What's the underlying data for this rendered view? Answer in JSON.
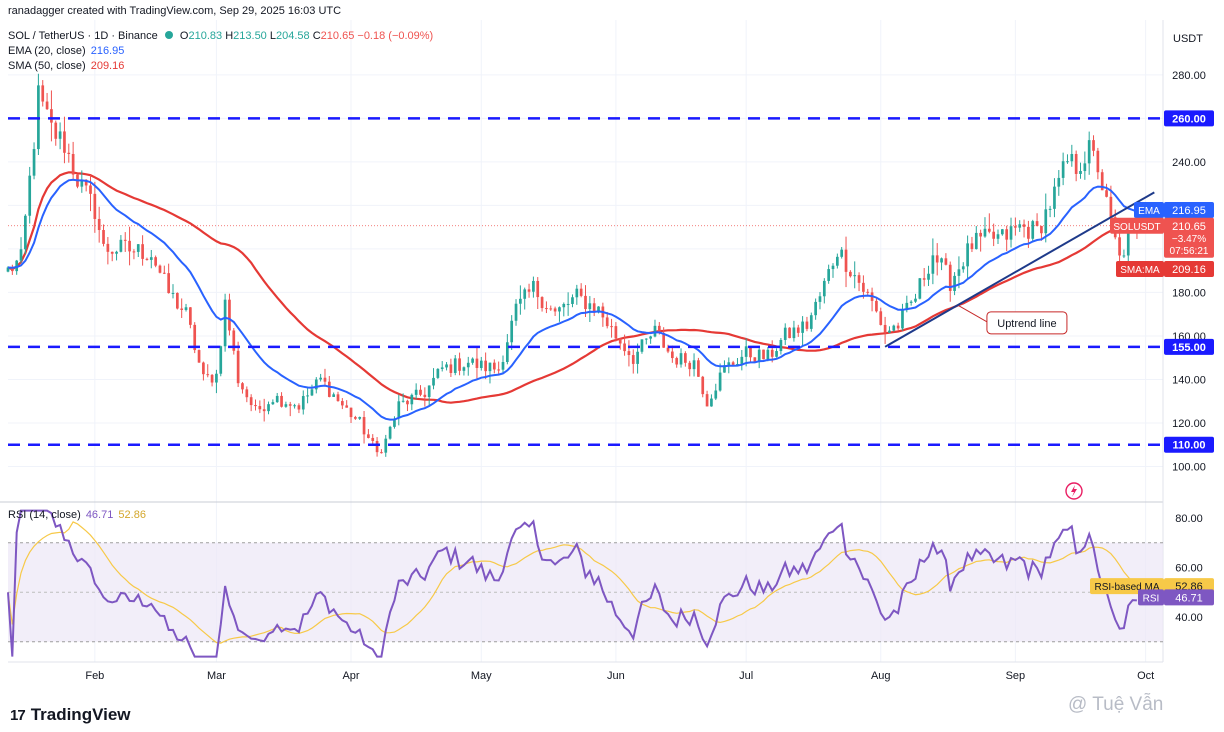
{
  "header": {
    "created_line": "ranadagger created with TradingView.com, Sep 29, 2025 16:03 UTC",
    "symbol_line": "SOL / TetherUS · 1D · Binance",
    "ohlc": {
      "o_label": "O",
      "o": "210.83",
      "h_label": "H",
      "h": "213.50",
      "l_label": "L",
      "l": "204.58",
      "c_label": "C",
      "c": "210.65",
      "change": "−0.18 (−0.09%)"
    },
    "ema_label": "EMA (20, close)",
    "ema_value": "216.95",
    "sma_label": "SMA (50, close)",
    "sma_value": "209.16",
    "rsi_label": "RSI (14, close)",
    "rsi_value": "46.71",
    "rsi_ma_value": "52.86",
    "currency": "USDT"
  },
  "footer": {
    "logo_text": "TradingView",
    "watermark": "@ Tuệ Vẫn"
  },
  "colors": {
    "up": "#26a69a",
    "down": "#ef5350",
    "ema": "#2962ff",
    "sma": "#e53935",
    "rsi": "#7e57c2",
    "rsi_ma": "#f7c948",
    "level_line": "#1a1aff",
    "trend_line": "#1e3a8a",
    "rsi_band": "#ede7f6"
  },
  "chart_data": [
    {
      "type": "candlestick",
      "title": "SOL / TetherUS · 1D · Binance",
      "ylabel": "USDT",
      "ylim": [
        92,
        290
      ],
      "y_ticks": [
        100,
        120,
        140,
        160,
        180,
        200,
        220,
        240,
        260,
        280
      ],
      "y_tick_labels": [
        "100.00",
        "120.00",
        "140.00",
        "160.00",
        "180.00",
        "200.00",
        "220.00",
        "240.00",
        "260.00",
        "280.00"
      ],
      "x_range": [
        "2025-01-12",
        "2025-10-05"
      ],
      "x_ticks": [
        {
          "date": "2025-02-01",
          "label": "Feb"
        },
        {
          "date": "2025-03-01",
          "label": "Mar"
        },
        {
          "date": "2025-04-01",
          "label": "Apr"
        },
        {
          "date": "2025-05-01",
          "label": "May"
        },
        {
          "date": "2025-06-01",
          "label": "Jun"
        },
        {
          "date": "2025-07-01",
          "label": "Jul"
        },
        {
          "date": "2025-08-01",
          "label": "Aug"
        },
        {
          "date": "2025-09-01",
          "label": "Sep"
        },
        {
          "date": "2025-10-01",
          "label": "Oct"
        }
      ],
      "close_waypoints": [
        [
          "2025-01-12",
          190
        ],
        [
          "2025-01-15",
          195
        ],
        [
          "2025-01-18",
          250
        ],
        [
          "2025-01-19",
          270
        ],
        [
          "2025-01-22",
          255
        ],
        [
          "2025-01-25",
          248
        ],
        [
          "2025-01-28",
          232
        ],
        [
          "2025-02-01",
          218
        ],
        [
          "2025-02-03",
          200
        ],
        [
          "2025-02-08",
          200
        ],
        [
          "2025-02-14",
          198
        ],
        [
          "2025-02-18",
          180
        ],
        [
          "2025-02-22",
          170
        ],
        [
          "2025-02-26",
          140
        ],
        [
          "2025-03-01",
          142
        ],
        [
          "2025-03-03",
          175
        ],
        [
          "2025-03-06",
          140
        ],
        [
          "2025-03-10",
          125
        ],
        [
          "2025-03-14",
          132
        ],
        [
          "2025-03-20",
          128
        ],
        [
          "2025-03-25",
          140
        ],
        [
          "2025-03-30",
          128
        ],
        [
          "2025-04-03",
          120
        ],
        [
          "2025-04-07",
          106
        ],
        [
          "2025-04-09",
          112
        ],
        [
          "2025-04-12",
          128
        ],
        [
          "2025-04-18",
          134
        ],
        [
          "2025-04-22",
          145
        ],
        [
          "2025-04-28",
          148
        ],
        [
          "2025-05-01",
          146
        ],
        [
          "2025-05-05",
          145
        ],
        [
          "2025-05-09",
          172
        ],
        [
          "2025-05-13",
          182
        ],
        [
          "2025-05-18",
          170
        ],
        [
          "2025-05-23",
          178
        ],
        [
          "2025-05-28",
          172
        ],
        [
          "2025-06-01",
          160
        ],
        [
          "2025-06-05",
          150
        ],
        [
          "2025-06-10",
          162
        ],
        [
          "2025-06-14",
          150
        ],
        [
          "2025-06-19",
          148
        ],
        [
          "2025-06-22",
          130
        ],
        [
          "2025-06-26",
          145
        ],
        [
          "2025-07-01",
          152
        ],
        [
          "2025-07-06",
          150
        ],
        [
          "2025-07-10",
          160
        ],
        [
          "2025-07-15",
          165
        ],
        [
          "2025-07-18",
          178
        ],
        [
          "2025-07-22",
          200
        ],
        [
          "2025-07-26",
          188
        ],
        [
          "2025-07-30",
          175
        ],
        [
          "2025-08-02",
          162
        ],
        [
          "2025-08-05",
          165
        ],
        [
          "2025-08-09",
          178
        ],
        [
          "2025-08-13",
          198
        ],
        [
          "2025-08-17",
          185
        ],
        [
          "2025-08-22",
          202
        ],
        [
          "2025-08-26",
          205
        ],
        [
          "2025-08-29",
          205
        ],
        [
          "2025-09-02",
          210
        ],
        [
          "2025-09-06",
          208
        ],
        [
          "2025-09-10",
          225
        ],
        [
          "2025-09-13",
          240
        ],
        [
          "2025-09-15",
          238
        ],
        [
          "2025-09-18",
          245
        ],
        [
          "2025-09-20",
          238
        ],
        [
          "2025-09-22",
          220
        ],
        [
          "2025-09-25",
          195
        ],
        [
          "2025-09-27",
          205
        ],
        [
          "2025-09-29",
          210.65
        ]
      ],
      "ohlc_last": {
        "date": "2025-09-29",
        "open": 210.83,
        "high": 213.5,
        "low": 204.58,
        "close": 210.65
      },
      "series": [
        {
          "name": "EMA (20, close)",
          "last": 216.95
        },
        {
          "name": "SMA (50, close)",
          "last": 209.16
        }
      ],
      "horizontal_levels": [
        260,
        155,
        110
      ],
      "level_labels": [
        "260.00",
        "155.00",
        "110.00"
      ],
      "trend_line": {
        "from": [
          "2025-08-02",
          155
        ],
        "to": [
          "2025-10-03",
          226
        ]
      },
      "annotation": {
        "text": "Uptrend line",
        "date": "2025-08-19",
        "value": 172
      },
      "price_labels": {
        "ema": {
          "tag": "EMA",
          "value": "216.95"
        },
        "last": {
          "tag": "SOLUSDT",
          "value": "210.65",
          "change": "−3.47%",
          "countdown": "07:56:21"
        },
        "sma": {
          "tag": "SMA:MA",
          "value": "209.16"
        }
      }
    },
    {
      "type": "line",
      "title": "RSI (14, close)",
      "ylim": [
        22,
        84
      ],
      "y_ticks": [
        40,
        60,
        80
      ],
      "y_tick_labels": [
        "40.00",
        "60.00",
        "80.00"
      ],
      "band": [
        30,
        70
      ],
      "midline": 50,
      "series": [
        {
          "name": "RSI",
          "last": 46.71
        },
        {
          "name": "RSI-based MA",
          "last": 52.86
        }
      ],
      "price_labels": {
        "ma": {
          "tag": "RSI-based MA",
          "value": "52.86"
        },
        "rsi": {
          "tag": "RSI",
          "value": "46.71"
        }
      }
    }
  ]
}
